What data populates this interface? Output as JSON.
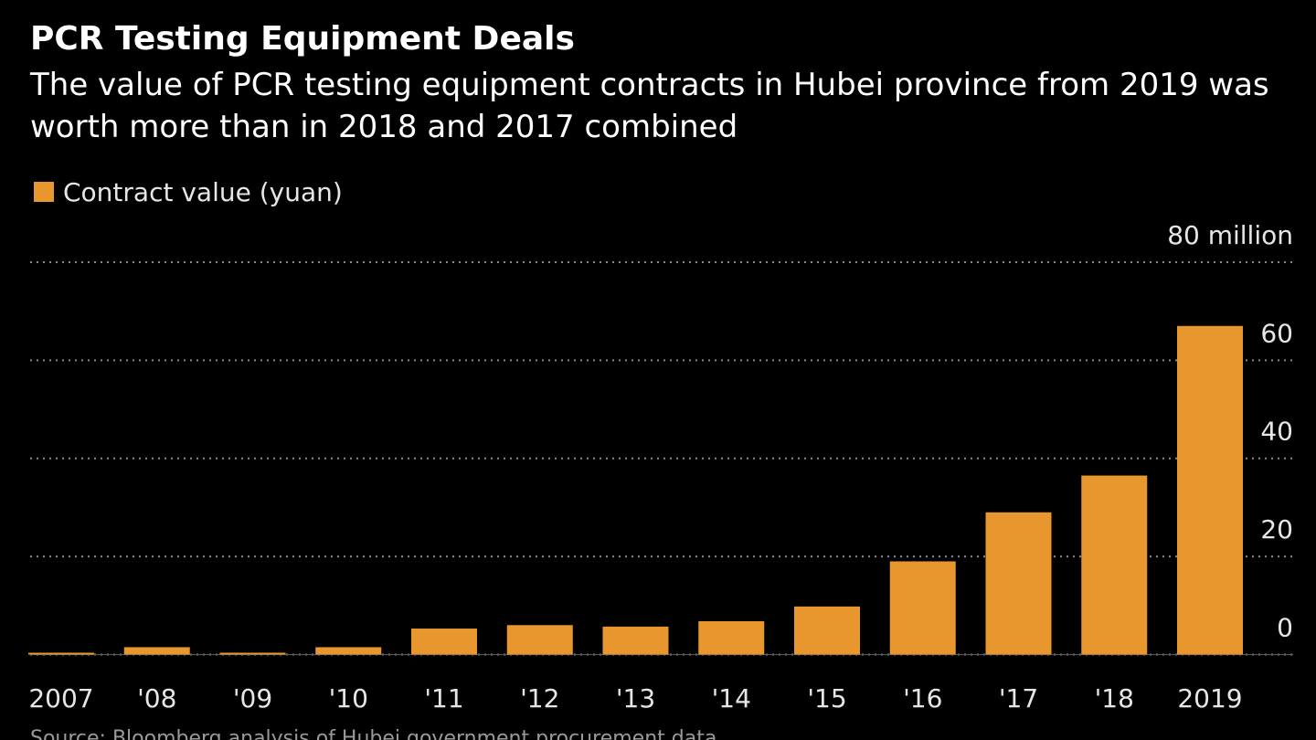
{
  "chart_data": {
    "type": "bar",
    "title": "PCR Testing Equipment Deals",
    "subtitle": "The value of PCR testing equipment contracts in Hubei province from 2019 was worth more than in 2018 and 2017 combined",
    "legend": {
      "placement": "top-left",
      "entries": [
        {
          "name": "Contract value (yuan)",
          "color": "#e8962e"
        }
      ]
    },
    "categories": [
      "2007",
      "'08",
      "'09",
      "'10",
      "'11",
      "'12",
      "'13",
      "'14",
      "'15",
      "'16",
      "'17",
      "'18",
      "2019"
    ],
    "series": [
      {
        "name": "Contract value (yuan)",
        "color": "#e8962e",
        "values": [
          0.3,
          1.5,
          0.1,
          1.5,
          5.3,
          6.0,
          5.7,
          6.8,
          9.8,
          19.0,
          29.0,
          36.5,
          67.0
        ]
      }
    ],
    "y_axis": {
      "position": "right",
      "unit_label": "million",
      "ylim": [
        -5.5,
        80
      ],
      "ticks": [
        0,
        20,
        40,
        60,
        80
      ],
      "tick_labels": [
        "0",
        "20",
        "40",
        "60",
        "80 million"
      ]
    },
    "grid": true,
    "grid_style": "dotted",
    "bar_color": "#e8962e",
    "background_color": "#000000",
    "gridline_color": "#8a8a8a"
  },
  "source_text": "Source: Bloomberg analysis of Hubei government procurement data"
}
